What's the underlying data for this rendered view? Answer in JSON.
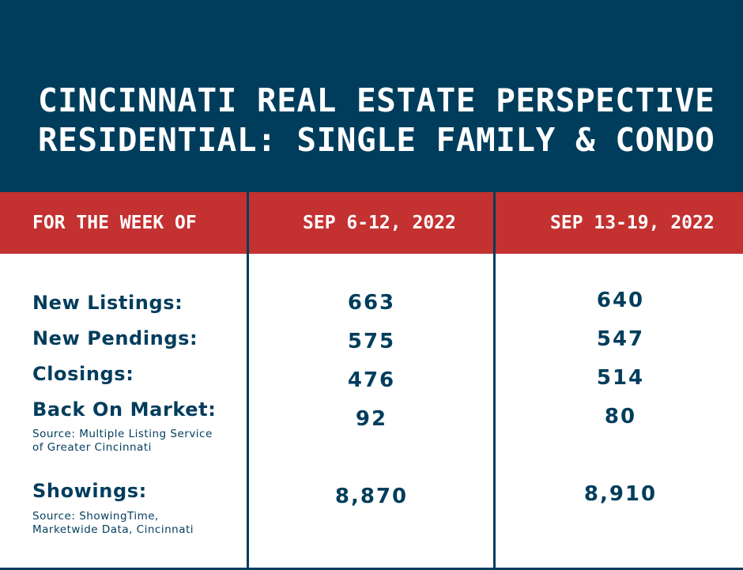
{
  "header": {
    "title_line1": "CINCINNATI REAL ESTATE PERSPECTIVE",
    "title_line2": "RESIDENTIAL: SINGLE FAMILY & CONDO"
  },
  "columns": {
    "label": "FOR THE WEEK OF",
    "week1": "SEP 6-12, 2022",
    "week2": "SEP 13-19, 2022"
  },
  "rows": [
    {
      "label": "New Listings:",
      "week1": "663",
      "week2": "640"
    },
    {
      "label": "New Pendings:",
      "week1": "575",
      "week2": "547"
    },
    {
      "label": "Closings:",
      "week1": "476",
      "week2": "514"
    },
    {
      "label": "Back On Market:",
      "week1": "92",
      "week2": "80"
    },
    {
      "label": "Showings:",
      "week1": "8,870",
      "week2": "8,910"
    }
  ],
  "sources": {
    "mls_line1": "Source: Multiple Listing Service",
    "mls_line2": "of Greater Cincinnati",
    "showing_line1": "Source: ShowingTime,",
    "showing_line2": "Marketwide Data, Cincinnati"
  },
  "colors": {
    "navy": "#003d5c",
    "red": "#c43131",
    "white": "#ffffff"
  }
}
